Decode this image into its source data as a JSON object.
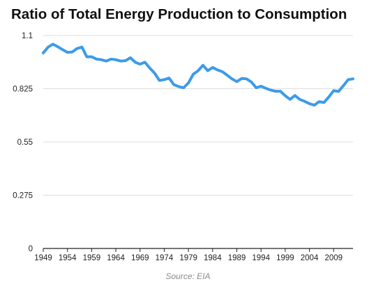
{
  "title": "Ratio of Total Energy Production to Consumption",
  "source": "Source: EIA",
  "colors": {
    "line": "#3d9be9",
    "grid": "#dcdcdc",
    "axis": "#222222"
  },
  "chart_data": {
    "type": "line",
    "title": "Ratio of Total Energy Production to Consumption",
    "xlabel": "",
    "ylabel": "",
    "xlim": [
      1949,
      2013
    ],
    "ylim": [
      0,
      1.1
    ],
    "x_ticks": [
      "1949",
      "1954",
      "1959",
      "1964",
      "1969",
      "1974",
      "1979",
      "1984",
      "1989",
      "1994",
      "1999",
      "2004",
      "2009"
    ],
    "y_ticks": [
      "0",
      "0.275",
      "0.55",
      "0.825",
      "1.1"
    ],
    "grid": "horizontal",
    "series": [
      {
        "x": [
          1949,
          1950,
          1951,
          1952,
          1953,
          1954,
          1955,
          1956,
          1957,
          1958,
          1959,
          1960,
          1961,
          1962,
          1963,
          1964,
          1965,
          1966,
          1967,
          1968,
          1969,
          1970,
          1971,
          1972,
          1973,
          1974,
          1975,
          1976,
          1977,
          1978,
          1979,
          1980,
          1981,
          1982,
          1983,
          1984,
          1985,
          1986,
          1987,
          1988,
          1989,
          1990,
          1991,
          1992,
          1993,
          1994,
          1995,
          1996,
          1997,
          1998,
          1999,
          2000,
          2001,
          2002,
          2003,
          2004,
          2005,
          2006,
          2007,
          2008,
          2009,
          2010,
          2011,
          2012,
          2013
        ],
        "values": [
          1.01,
          1.04,
          1.055,
          1.042,
          1.027,
          1.013,
          1.015,
          1.033,
          1.04,
          0.99,
          0.99,
          0.978,
          0.975,
          0.968,
          0.978,
          0.975,
          0.968,
          0.97,
          0.985,
          0.962,
          0.952,
          0.962,
          0.932,
          0.906,
          0.868,
          0.872,
          0.88,
          0.846,
          0.836,
          0.83,
          0.855,
          0.9,
          0.918,
          0.946,
          0.918,
          0.935,
          0.922,
          0.913,
          0.895,
          0.876,
          0.862,
          0.878,
          0.876,
          0.86,
          0.83,
          0.838,
          0.827,
          0.818,
          0.812,
          0.812,
          0.789,
          0.77,
          0.79,
          0.77,
          0.76,
          0.748,
          0.74,
          0.758,
          0.754,
          0.782,
          0.815,
          0.811,
          0.84,
          0.872,
          0.876
        ]
      }
    ]
  }
}
